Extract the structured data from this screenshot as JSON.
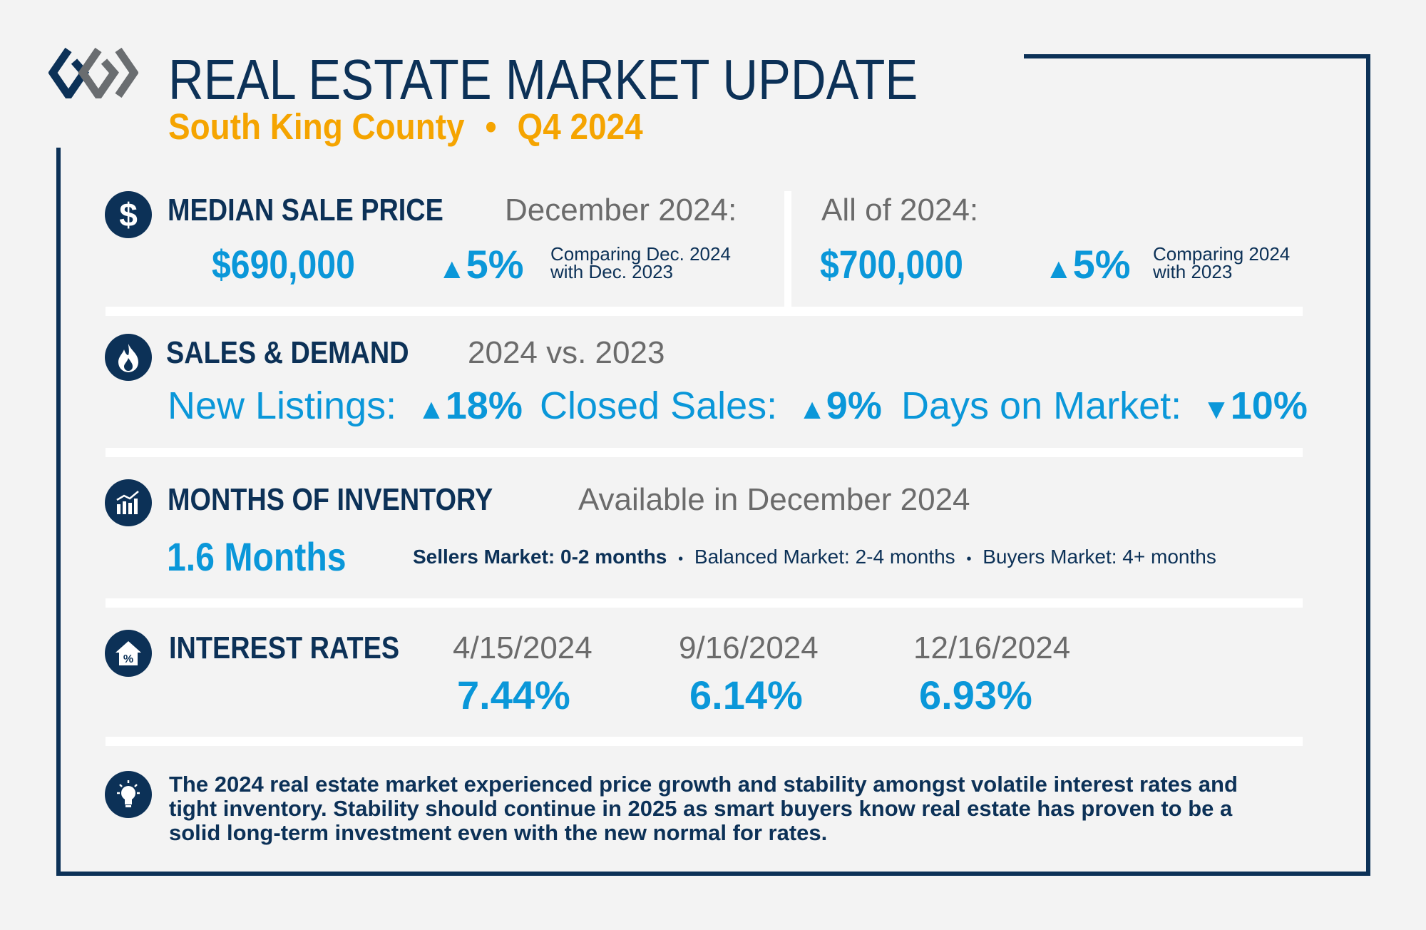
{
  "header": {
    "title": "REAL ESTATE MARKET UPDATE",
    "region": "South King County",
    "separator": "•",
    "period": "Q4 2024"
  },
  "median_sale_price": {
    "heading": "MEDIAN SALE PRICE",
    "month_label": "December 2024:",
    "month_value": "$690,000",
    "month_change": "5%",
    "month_direction": "up",
    "month_note_1": "Comparing Dec. 2024",
    "month_note_2": "with Dec. 2023",
    "year_label": "All of 2024:",
    "year_value": "$700,000",
    "year_change": "5%",
    "year_direction": "up",
    "year_note_1": "Comparing 2024",
    "year_note_2": "with 2023"
  },
  "sales_demand": {
    "heading": "SALES & DEMAND",
    "subheading": "2024 vs. 2023",
    "metrics": [
      {
        "label": "New Listings:",
        "arrow": "▲",
        "value": "18%"
      },
      {
        "label": "Closed Sales:",
        "arrow": "▲",
        "value": "9%"
      },
      {
        "label": "Days on Market:",
        "arrow": "▼",
        "value": "10%"
      }
    ]
  },
  "inventory": {
    "heading": "MONTHS OF INVENTORY",
    "subheading": "Available in December 2024",
    "value": "1.6 Months",
    "scale": [
      "Sellers Market: 0-2 months",
      "Balanced Market: 2-4 months",
      "Buyers Market: 4+ months"
    ],
    "bullet": "•"
  },
  "interest_rates": {
    "heading": "INTEREST RATES",
    "rates": [
      {
        "date": "4/15/2024",
        "rate": "7.44%"
      },
      {
        "date": "9/16/2024",
        "rate": "6.14%"
      },
      {
        "date": "12/16/2024",
        "rate": "6.93%"
      }
    ]
  },
  "summary": {
    "lines": [
      "The 2024 real estate market experienced price growth and stability amongst volatile interest rates and",
      "tight inventory. Stability should continue in 2025 as smart buyers know real estate has proven to be a",
      "solid long-term investment even with the new normal for rates."
    ]
  },
  "colors": {
    "navy": "#0c3157",
    "blue": "#0a97d9",
    "orange": "#f5a400",
    "gray": "#6b6b6b"
  }
}
